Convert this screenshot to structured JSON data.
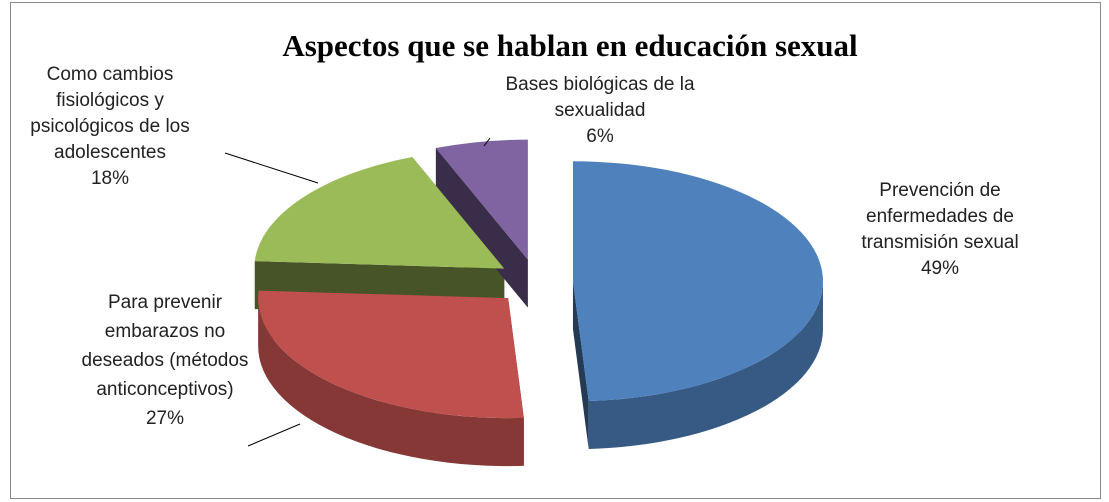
{
  "chart_data": {
    "type": "pie",
    "title": "Aspectos que se hablan en educación sexual",
    "categories": [
      "Prevención de enfermedades de transmisión sexual",
      "Para prevenir embarazos no deseados (métodos anticonceptivos)",
      "Como cambios fisiológicos y psicológicos de los adolescentes",
      "Bases biológicas de la sexualidad"
    ],
    "values": [
      49,
      27,
      18,
      6
    ],
    "value_labels": [
      "49%",
      "27%",
      "18%",
      "6%"
    ],
    "colors": [
      "#4f81bd",
      "#c0504d",
      "#9bbb59",
      "#8064a2"
    ]
  }
}
